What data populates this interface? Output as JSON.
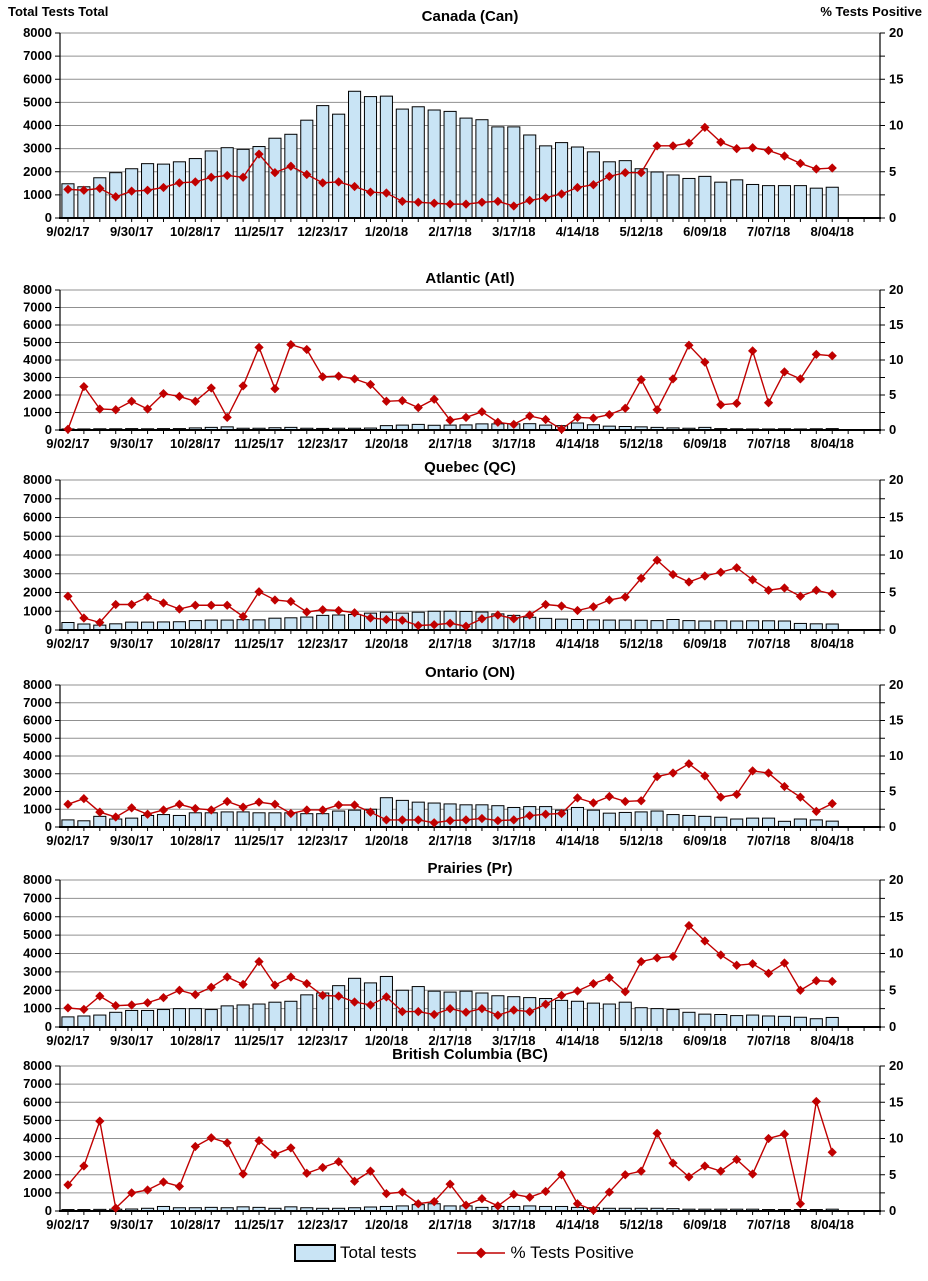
{
  "page": {
    "left_axis_title": "Total Tests Total",
    "right_axis_title": "% Tests Positive"
  },
  "legend": {
    "bars_label": "Total tests",
    "line_label": "% Tests Positive"
  },
  "colors": {
    "bar_fill": "#C9E4F5",
    "bar_stroke": "#000000",
    "line": "#C00000",
    "grid": "#909090",
    "text": "#000000"
  },
  "axis": {
    "x_labels": [
      "9/02/17",
      "9/30/17",
      "10/28/17",
      "11/25/17",
      "12/23/17",
      "1/20/18",
      "2/17/18",
      "3/17/18",
      "4/14/18",
      "5/12/18",
      "6/09/18",
      "7/07/18",
      "8/04/18"
    ],
    "label_every_weeks": 4,
    "weeks_total": 49,
    "extra_slots": 2.5,
    "left_ticks": [
      0,
      1000,
      2000,
      3000,
      4000,
      5000,
      6000,
      7000,
      8000
    ],
    "left_max": 8000,
    "right_ticks": [
      0,
      5,
      10,
      15,
      20
    ],
    "right_max": 20
  },
  "chart_data": [
    {
      "type": "bar",
      "title": "Canada (Can)",
      "bar_series": "Total tests",
      "line_series": "% Tests Positive",
      "bars": [
        1480,
        1350,
        1740,
        1960,
        2130,
        2350,
        2330,
        2430,
        2570,
        2900,
        3040,
        2970,
        3090,
        3450,
        3620,
        4230,
        4860,
        4490,
        5480,
        5250,
        5270,
        4710,
        4810,
        4670,
        4610,
        4320,
        4250,
        3940,
        3940,
        3590,
        3120,
        3260,
        3070,
        2860,
        2430,
        2480,
        2130,
        1990,
        1860,
        1710,
        1800,
        1550,
        1650,
        1450,
        1400,
        1400,
        1400,
        1290,
        1330
      ],
      "line": [
        3.1,
        3.0,
        3.2,
        2.3,
        2.9,
        3.0,
        3.3,
        3.8,
        3.9,
        4.4,
        4.6,
        4.4,
        6.9,
        4.9,
        5.6,
        4.7,
        3.8,
        3.9,
        3.4,
        2.8,
        2.7,
        1.8,
        1.7,
        1.6,
        1.5,
        1.5,
        1.7,
        1.8,
        1.3,
        1.9,
        2.2,
        2.6,
        3.3,
        3.6,
        4.5,
        4.9,
        4.9,
        7.8,
        7.8,
        8.1,
        9.8,
        8.2,
        7.5,
        7.6,
        7.3,
        6.7,
        5.9,
        5.3,
        5.4
      ]
    },
    {
      "type": "bar",
      "title": "Atlantic (Atl)",
      "bar_series": "Total tests",
      "line_series": "% Tests Positive",
      "bars": [
        60,
        60,
        70,
        70,
        80,
        70,
        80,
        80,
        120,
        150,
        180,
        100,
        100,
        130,
        150,
        100,
        90,
        100,
        100,
        110,
        250,
        280,
        320,
        270,
        280,
        290,
        350,
        350,
        350,
        360,
        280,
        250,
        400,
        300,
        220,
        200,
        180,
        150,
        120,
        100,
        150,
        80,
        70,
        60,
        60,
        70,
        60,
        70,
        80
      ],
      "line": [
        0.1,
        6.2,
        3.0,
        2.9,
        4.1,
        3.0,
        5.2,
        4.8,
        4.1,
        6.0,
        1.8,
        6.3,
        11.8,
        5.9,
        12.2,
        11.5,
        7.6,
        7.7,
        7.3,
        6.5,
        4.1,
        4.2,
        3.2,
        4.4,
        1.4,
        1.8,
        2.6,
        1.1,
        0.8,
        2.0,
        1.5,
        0.1,
        1.8,
        1.7,
        2.2,
        3.1,
        7.2,
        2.9,
        7.3,
        12.1,
        9.7,
        3.6,
        3.8,
        11.3,
        3.9,
        8.3,
        7.3,
        10.8,
        10.6
      ]
    },
    {
      "type": "bar",
      "title": "Quebec (QC)",
      "bar_series": "Total tests",
      "line_series": "% Tests Positive",
      "bars": [
        400,
        320,
        260,
        330,
        420,
        420,
        430,
        440,
        500,
        530,
        530,
        550,
        540,
        630,
        650,
        690,
        780,
        800,
        830,
        900,
        950,
        900,
        950,
        1000,
        1000,
        990,
        960,
        860,
        780,
        680,
        620,
        580,
        560,
        540,
        530,
        530,
        520,
        500,
        560,
        500,
        480,
        490,
        480,
        490,
        490,
        480,
        350,
        330,
        320
      ],
      "line": [
        4.5,
        1.6,
        1.0,
        3.4,
        3.4,
        4.4,
        3.6,
        2.8,
        3.3,
        3.3,
        3.3,
        1.8,
        5.1,
        4.0,
        3.8,
        2.4,
        2.7,
        2.6,
        2.3,
        1.6,
        1.4,
        1.3,
        0.6,
        0.7,
        0.9,
        0.5,
        1.5,
        2.0,
        1.5,
        2.0,
        3.4,
        3.2,
        2.6,
        3.1,
        4.0,
        4.4,
        6.9,
        9.3,
        7.4,
        6.4,
        7.2,
        7.7,
        8.3,
        6.7,
        5.3,
        5.6,
        4.5,
        5.3,
        4.8
      ]
    },
    {
      "type": "bar",
      "title": "Ontario (ON)",
      "bar_series": "Total tests",
      "line_series": "% Tests Positive",
      "bars": [
        400,
        350,
        600,
        450,
        500,
        650,
        700,
        650,
        800,
        800,
        850,
        850,
        800,
        800,
        800,
        750,
        750,
        900,
        950,
        1000,
        1650,
        1500,
        1400,
        1350,
        1300,
        1250,
        1250,
        1200,
        1100,
        1150,
        1150,
        950,
        1100,
        950,
        780,
        820,
        850,
        900,
        700,
        650,
        600,
        550,
        450,
        500,
        500,
        320,
        450,
        400,
        330
      ],
      "line": [
        3.2,
        4.0,
        2.1,
        1.4,
        2.7,
        1.8,
        2.4,
        3.2,
        2.6,
        2.4,
        3.6,
        2.8,
        3.5,
        3.2,
        1.9,
        2.4,
        2.4,
        3.1,
        3.1,
        2.1,
        1.0,
        1.0,
        1.0,
        0.6,
        0.9,
        1.0,
        1.2,
        0.9,
        1.0,
        1.6,
        1.8,
        1.9,
        4.1,
        3.4,
        4.3,
        3.6,
        3.7,
        7.1,
        7.6,
        8.9,
        7.2,
        4.2,
        4.6,
        7.9,
        7.6,
        5.7,
        4.2,
        2.2,
        3.3
      ]
    },
    {
      "type": "bar",
      "title": "Prairies (Pr)",
      "bar_series": "Total tests",
      "line_series": "% Tests Positive",
      "bars": [
        550,
        600,
        650,
        800,
        900,
        900,
        950,
        1000,
        1000,
        950,
        1150,
        1200,
        1250,
        1350,
        1400,
        1750,
        1850,
        2250,
        2650,
        2400,
        2750,
        2000,
        2200,
        1950,
        1900,
        1950,
        1850,
        1700,
        1650,
        1600,
        1550,
        1450,
        1400,
        1300,
        1250,
        1350,
        1050,
        1000,
        950,
        800,
        700,
        680,
        620,
        650,
        600,
        580,
        530,
        450,
        520
      ],
      "line": [
        2.6,
        2.4,
        4.2,
        2.9,
        3.0,
        3.3,
        4.0,
        5.0,
        4.4,
        5.4,
        6.8,
        5.8,
        8.9,
        5.7,
        6.8,
        5.9,
        4.3,
        4.2,
        3.4,
        3.0,
        4.1,
        2.1,
        2.1,
        1.7,
        2.5,
        2.0,
        2.5,
        1.6,
        2.3,
        2.1,
        3.1,
        4.3,
        4.9,
        5.9,
        6.7,
        4.8,
        8.9,
        9.4,
        9.6,
        13.8,
        11.7,
        9.8,
        8.4,
        8.6,
        7.3,
        8.7,
        5.0,
        6.3,
        6.2
      ]
    },
    {
      "type": "bar",
      "title": "British Columbia (BC)",
      "bar_series": "Total tests",
      "line_series": "% Tests Positive",
      "bars": [
        80,
        80,
        90,
        100,
        110,
        150,
        250,
        180,
        180,
        200,
        180,
        230,
        200,
        150,
        230,
        180,
        150,
        150,
        180,
        220,
        250,
        280,
        350,
        400,
        280,
        280,
        200,
        250,
        250,
        280,
        250,
        250,
        200,
        180,
        150,
        150,
        150,
        150,
        130,
        100,
        100,
        100,
        100,
        100,
        80,
        80,
        80,
        80,
        100
      ],
      "line": [
        3.6,
        6.2,
        12.4,
        0.4,
        2.5,
        2.9,
        4.0,
        3.4,
        8.9,
        10.1,
        9.4,
        5.1,
        9.7,
        7.8,
        8.7,
        5.2,
        6.0,
        6.8,
        4.1,
        5.5,
        2.4,
        2.6,
        1.0,
        1.3,
        3.7,
        0.8,
        1.7,
        0.7,
        2.3,
        1.9,
        2.7,
        5.0,
        1.0,
        0.1,
        2.6,
        5.0,
        5.5,
        10.7,
        6.6,
        4.7,
        6.2,
        5.5,
        7.1,
        5.1,
        10.0,
        10.6,
        1.0,
        15.1,
        8.1
      ]
    }
  ]
}
